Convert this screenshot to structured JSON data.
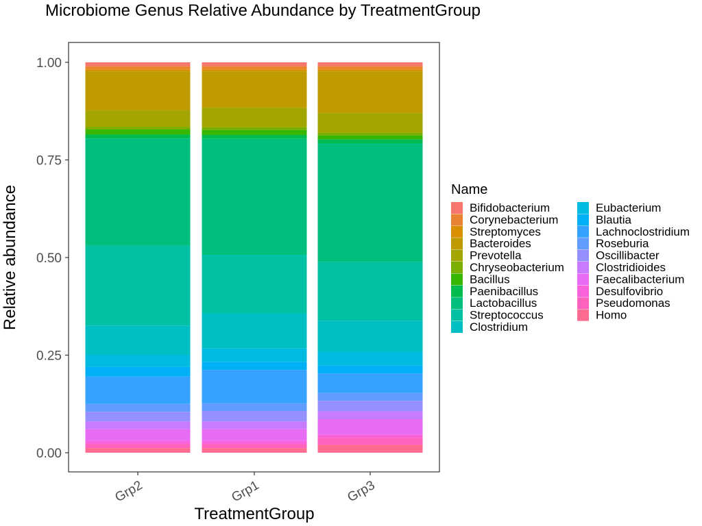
{
  "chart_data": {
    "type": "stacked-bar",
    "title": "Microbiome Genus Relative Abundance by TreatmentGroup",
    "xlabel": "TreatmentGroup",
    "ylabel": "Relative abundance",
    "ylim": [
      0,
      1
    ],
    "yticks": [
      "0.00",
      "0.25",
      "0.50",
      "0.75",
      "1.00"
    ],
    "grid": false,
    "legend_title": "Name",
    "legend_position": "right",
    "categories": [
      "Grp2",
      "Grp1",
      "Grp3"
    ],
    "series": [
      {
        "name": "Bifidobacterium",
        "color": "#F8766D",
        "values": [
          0.01,
          0.01,
          0.01
        ]
      },
      {
        "name": "Corynebacterium",
        "color": "#EA8331",
        "values": [
          0.008,
          0.008,
          0.008
        ]
      },
      {
        "name": "Streptomyces",
        "color": "#D89000",
        "values": [
          0.005,
          0.005,
          0.005
        ]
      },
      {
        "name": "Bacteroides",
        "color": "#C09B00",
        "values": [
          0.1,
          0.093,
          0.107
        ]
      },
      {
        "name": "Prevotella",
        "color": "#A3A500",
        "values": [
          0.042,
          0.05,
          0.05
        ]
      },
      {
        "name": "Chryseobacterium",
        "color": "#7CAE00",
        "values": [
          0.007,
          0.007,
          0.007
        ]
      },
      {
        "name": "Bacillus",
        "color": "#39B600",
        "values": [
          0.013,
          0.013,
          0.01
        ]
      },
      {
        "name": "Paenibacillus",
        "color": "#00BB4E",
        "values": [
          0.01,
          0.01,
          0.01
        ]
      },
      {
        "name": "Lactobacillus",
        "color": "#00BF7D",
        "values": [
          0.275,
          0.297,
          0.305
        ]
      },
      {
        "name": "Streptococcus",
        "color": "#00C1A3",
        "values": [
          0.205,
          0.15,
          0.15
        ]
      },
      {
        "name": "Clostridium",
        "color": "#00BFC4",
        "values": [
          0.075,
          0.09,
          0.08
        ]
      },
      {
        "name": "Eubacterium",
        "color": "#00BAE0",
        "values": [
          0.03,
          0.035,
          0.035
        ]
      },
      {
        "name": "Blautia",
        "color": "#00B0F6",
        "values": [
          0.025,
          0.02,
          0.02
        ]
      },
      {
        "name": "Lachnoclostridium",
        "color": "#35A2FF",
        "values": [
          0.07,
          0.085,
          0.05
        ]
      },
      {
        "name": "Roseburia",
        "color": "#619CFF",
        "values": [
          0.02,
          0.02,
          0.02
        ]
      },
      {
        "name": "Oscillibacter",
        "color": "#9590FF",
        "values": [
          0.025,
          0.027,
          0.027
        ]
      },
      {
        "name": "Clostridioides",
        "color": "#C77CFF",
        "values": [
          0.02,
          0.02,
          0.02
        ]
      },
      {
        "name": "Faecalibacterium",
        "color": "#E76BF3",
        "values": [
          0.03,
          0.03,
          0.04
        ]
      },
      {
        "name": "Desulfovibrio",
        "color": "#FA62DB",
        "values": [
          0.008,
          0.008,
          0.008
        ]
      },
      {
        "name": "Pseudomonas",
        "color": "#FF62BC",
        "values": [
          0.01,
          0.01,
          0.018
        ]
      },
      {
        "name": "Homo",
        "color": "#FF6C91",
        "values": [
          0.012,
          0.012,
          0.02
        ]
      }
    ]
  }
}
